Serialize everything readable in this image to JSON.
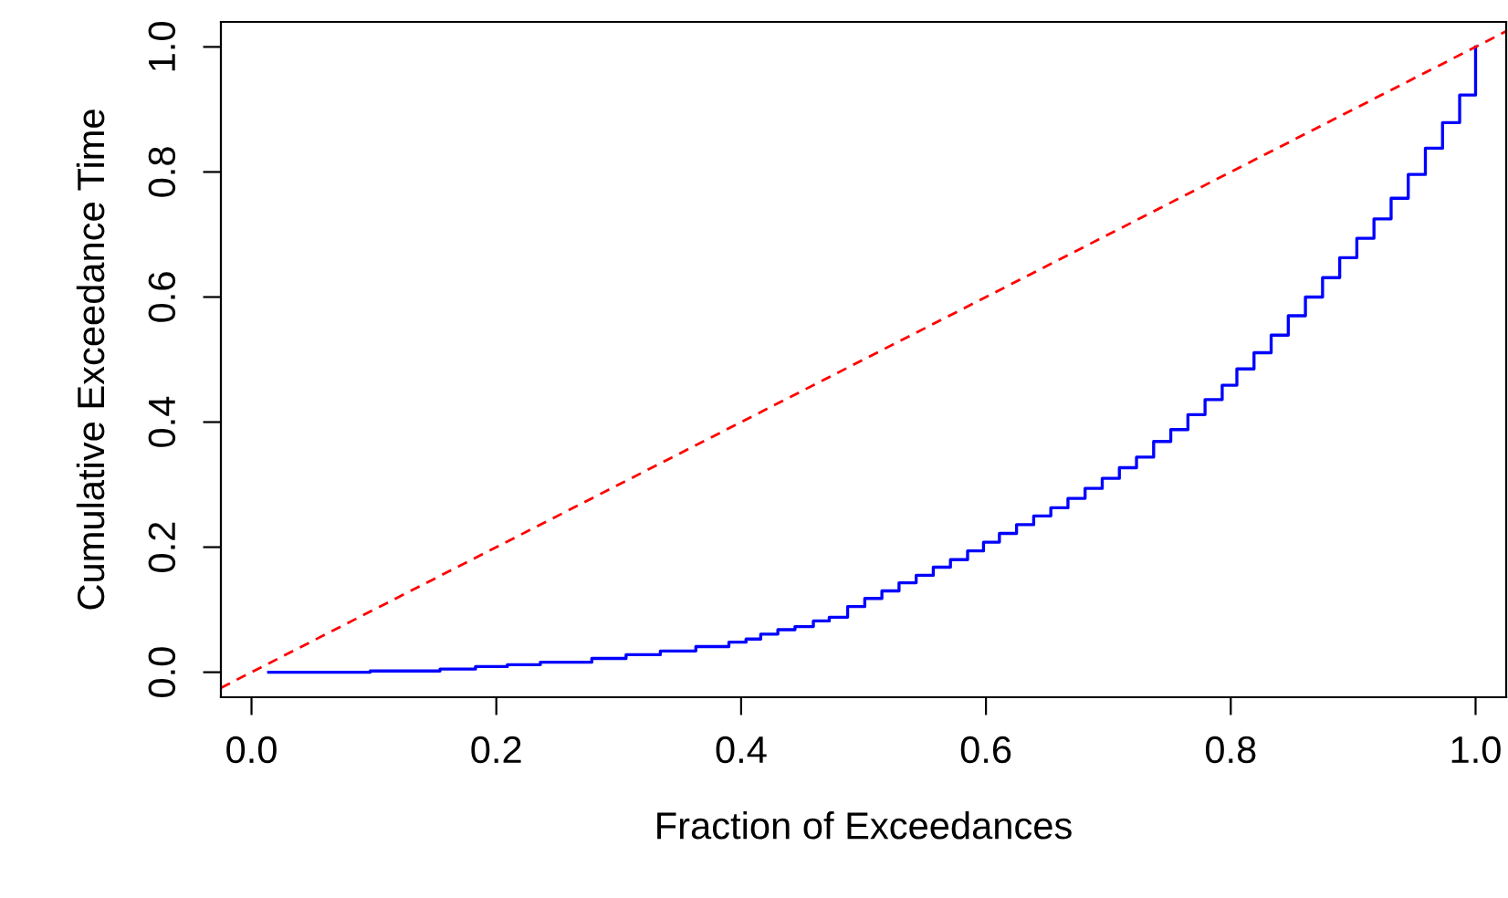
{
  "chart_data": {
    "type": "step",
    "xlabel": "Fraction of Exceedances",
    "ylabel": "Cumulative Exceedance Time",
    "xlim": [
      -0.025,
      1.025
    ],
    "ylim": [
      -0.04,
      1.04
    ],
    "xticks": [
      {
        "value": 0,
        "label": "0.0"
      },
      {
        "value": 0.2,
        "label": "0.2"
      },
      {
        "value": 0.4,
        "label": "0.4"
      },
      {
        "value": 0.6,
        "label": "0.6"
      },
      {
        "value": 0.8,
        "label": "0.8"
      },
      {
        "value": 1,
        "label": "1.0"
      }
    ],
    "yticks": [
      {
        "value": 0,
        "label": "0.0"
      },
      {
        "value": 0.2,
        "label": "0.2"
      },
      {
        "value": 0.4,
        "label": "0.4"
      },
      {
        "value": 0.6,
        "label": "0.6"
      },
      {
        "value": 0.8,
        "label": "0.8"
      },
      {
        "value": 1,
        "label": "1.0"
      }
    ],
    "grid": false,
    "legend": false,
    "series": [
      {
        "color": "#0000ff",
        "line_style": "solid",
        "x": [
          0.014,
          0.097,
          0.154,
          0.183,
          0.209,
          0.236,
          0.278,
          0.306,
          0.334,
          0.363,
          0.39,
          0.404,
          0.416,
          0.43,
          0.444,
          0.459,
          0.472,
          0.487,
          0.501,
          0.515,
          0.529,
          0.543,
          0.557,
          0.571,
          0.585,
          0.598,
          0.611,
          0.625,
          0.639,
          0.653,
          0.667,
          0.681,
          0.695,
          0.709,
          0.723,
          0.737,
          0.751,
          0.765,
          0.779,
          0.793,
          0.805,
          0.819,
          0.833,
          0.847,
          0.861,
          0.875,
          0.889,
          0.903,
          0.917,
          0.931,
          0.945,
          0.959,
          0.973,
          0.987,
          1.0
        ],
        "values": [
          0,
          0.002,
          0.005,
          0.009,
          0.012,
          0.016,
          0.022,
          0.028,
          0.034,
          0.041,
          0.048,
          0.053,
          0.061,
          0.068,
          0.073,
          0.082,
          0.088,
          0.105,
          0.118,
          0.13,
          0.143,
          0.155,
          0.168,
          0.18,
          0.194,
          0.208,
          0.222,
          0.236,
          0.25,
          0.263,
          0.278,
          0.294,
          0.31,
          0.327,
          0.344,
          0.369,
          0.388,
          0.412,
          0.436,
          0.459,
          0.485,
          0.511,
          0.539,
          0.57,
          0.6,
          0.631,
          0.663,
          0.694,
          0.725,
          0.758,
          0.796,
          0.838,
          0.879,
          0.923,
          1.0
        ]
      },
      {
        "type": "line",
        "color": "#ff0000",
        "line_style": "dashed",
        "x": [
          -0.025,
          1.025
        ],
        "values": [
          -0.025,
          1.025
        ]
      }
    ]
  }
}
